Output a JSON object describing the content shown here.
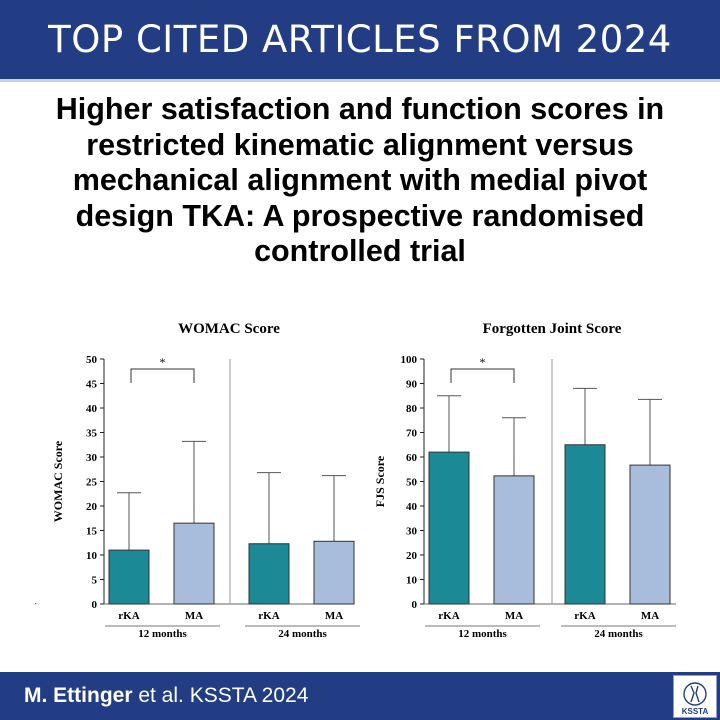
{
  "banner": {
    "title": "TOP CITED ARTICLES FROM 2024"
  },
  "article": {
    "title": "Higher satisfaction and function scores in restricted kinematic alignment versus mechanical alignment with medial pivot design TKA: A prospective randomised controlled trial"
  },
  "footer": {
    "authors": "M. Ettinger",
    "citation_rest": " et al. KSSTA 2024",
    "logo_text": "KSSTA"
  },
  "colors": {
    "banner": "#233d84",
    "rKA_bar": "#1b8a96",
    "MA_bar": "#a8bcdc"
  },
  "chart_data": [
    {
      "type": "bar",
      "title": "WOMAC Score",
      "ylabel": "WOMAC Score",
      "ylim": [
        0,
        50
      ],
      "yticks": [
        0,
        5,
        10,
        15,
        20,
        25,
        30,
        35,
        40,
        45,
        50
      ],
      "groups": [
        {
          "label": "12 months",
          "bars": [
            {
              "category": "rKA",
              "value": 11,
              "error_upper": 22.7
            },
            {
              "category": "MA",
              "value": 16.5,
              "error_upper": 33.2
            }
          ],
          "significance": "*"
        },
        {
          "label": "24 months",
          "bars": [
            {
              "category": "rKA",
              "value": 12.3,
              "error_upper": 26.8
            },
            {
              "category": "MA",
              "value": 12.8,
              "error_upper": 26.2
            }
          ]
        }
      ]
    },
    {
      "type": "bar",
      "title": "Forgotten Joint Score",
      "ylabel": "FJS Score",
      "ylim": [
        0,
        100
      ],
      "yticks": [
        0,
        10,
        20,
        30,
        40,
        50,
        60,
        70,
        80,
        90,
        100
      ],
      "groups": [
        {
          "label": "12 months",
          "bars": [
            {
              "category": "rKA",
              "value": 62,
              "error_upper": 85
            },
            {
              "category": "MA",
              "value": 52.3,
              "error_upper": 76
            }
          ],
          "significance": "*"
        },
        {
          "label": "24 months",
          "bars": [
            {
              "category": "rKA",
              "value": 65,
              "error_upper": 88
            },
            {
              "category": "MA",
              "value": 56.7,
              "error_upper": 83.5
            }
          ]
        }
      ]
    }
  ]
}
